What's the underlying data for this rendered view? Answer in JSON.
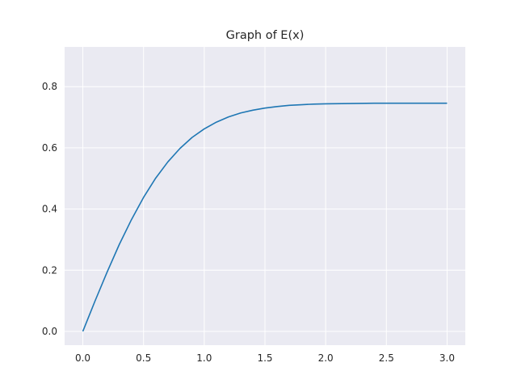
{
  "chart_data": {
    "type": "line",
    "title": "Graph of E(x)",
    "xlabel": "",
    "ylabel": "",
    "xlim": [
      -0.15,
      3.15
    ],
    "ylim": [
      -0.045,
      0.93
    ],
    "x_ticks": [
      0.0,
      0.5,
      1.0,
      1.5,
      2.0,
      2.5,
      3.0
    ],
    "x_tick_labels": [
      "0.0",
      "0.5",
      "1.0",
      "1.5",
      "2.0",
      "2.5",
      "3.0"
    ],
    "y_ticks": [
      0.0,
      0.2,
      0.4,
      0.6,
      0.8
    ],
    "y_tick_labels": [
      "0.0",
      "0.2",
      "0.4",
      "0.6",
      "0.8"
    ],
    "grid": true,
    "colors": {
      "background": "#eaeaf2",
      "grid": "#ffffff",
      "line": "#1f77b4"
    },
    "series": [
      {
        "x": [
          0.0,
          0.1,
          0.2,
          0.3,
          0.4,
          0.5,
          0.6,
          0.7,
          0.8,
          0.9,
          1.0,
          1.1,
          1.2,
          1.3,
          1.4,
          1.5,
          1.6,
          1.7,
          1.8,
          1.9,
          2.0,
          2.2,
          2.4,
          2.6,
          2.8,
          3.0
        ],
        "y": [
          0.0,
          0.099,
          0.194,
          0.284,
          0.365,
          0.438,
          0.501,
          0.554,
          0.598,
          0.634,
          0.662,
          0.684,
          0.701,
          0.714,
          0.723,
          0.73,
          0.735,
          0.739,
          0.741,
          0.743,
          0.744,
          0.745,
          0.746,
          0.746,
          0.746,
          0.746
        ]
      }
    ]
  }
}
